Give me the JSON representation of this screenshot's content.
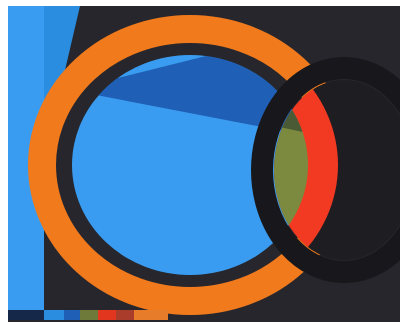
{
  "palette": {
    "background": "#ffffff",
    "charcoal": "#26262c",
    "charcoal_dark": "#1d1d22",
    "sky_blue": "#2a8de0",
    "royal_blue": "#1f5fb5",
    "light_blue": "#3a9cf0",
    "orange": "#f07a1c",
    "olive_green": "#7b8a3f",
    "dark_olive": "#4a5a35",
    "red": "#f23a22",
    "dark_red": "#a52a1e",
    "black_ring": "#18181c",
    "swatch_dark_navy": "#16284a",
    "swatch_blue": "#2a8de0",
    "swatch_mid_blue": "#1f5fb5",
    "swatch_green": "#6e7a3a",
    "swatch_red": "#e2361e",
    "swatch_brick": "#a93c2b",
    "swatch_orange": "#e77d2a"
  },
  "swatches": [
    "swatch_dark_navy",
    "swatch_blue",
    "swatch_mid_blue",
    "swatch_green",
    "swatch_red",
    "swatch_brick",
    "swatch_orange"
  ]
}
